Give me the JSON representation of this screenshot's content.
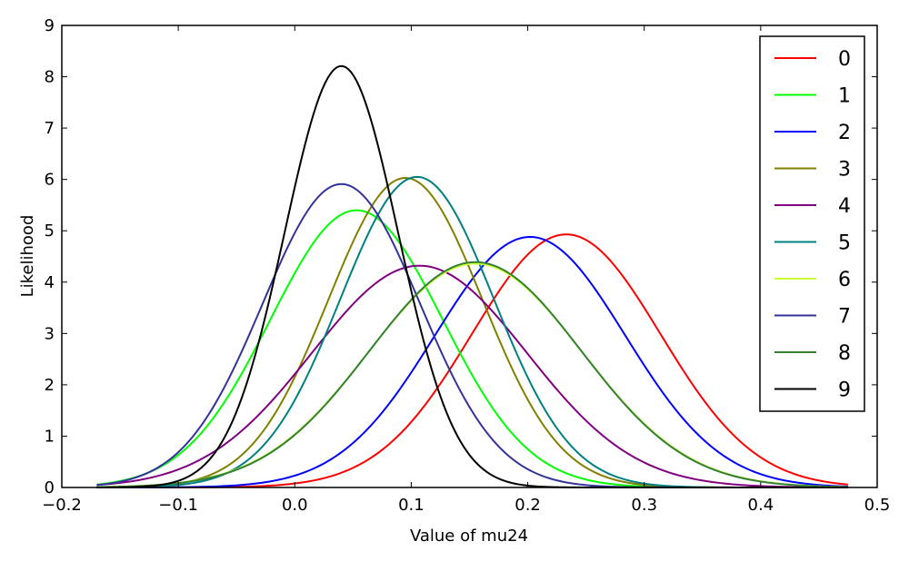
{
  "chart_data": {
    "type": "line",
    "title": "",
    "xlabel": "Value of mu24",
    "ylabel": "Likelihood",
    "xlim": [
      -0.2,
      0.5
    ],
    "ylim": [
      0,
      9
    ],
    "x_range_of_curves": [
      -0.17,
      0.475
    ],
    "xticks": [
      -0.2,
      -0.1,
      0.0,
      0.1,
      0.2,
      0.3,
      0.4,
      0.5
    ],
    "xtick_labels": [
      "−0.2",
      "−0.1",
      "0.0",
      "0.1",
      "0.2",
      "0.3",
      "0.4",
      "0.5"
    ],
    "yticks": [
      0,
      1,
      2,
      3,
      4,
      5,
      6,
      7,
      8,
      9
    ],
    "ytick_labels": [
      "0",
      "1",
      "2",
      "3",
      "4",
      "5",
      "6",
      "7",
      "8",
      "9"
    ],
    "grid": false,
    "legend_position": "top-right",
    "series": [
      {
        "name": "0",
        "color": "#ff0000",
        "peak_x": 0.233,
        "peak_y": 4.93
      },
      {
        "name": "1",
        "color": "#00ff00",
        "peak_x": 0.053,
        "peak_y": 5.4
      },
      {
        "name": "2",
        "color": "#0000ff",
        "peak_x": 0.202,
        "peak_y": 4.88
      },
      {
        "name": "3",
        "color": "#808000",
        "peak_x": 0.095,
        "peak_y": 6.03
      },
      {
        "name": "4",
        "color": "#800080",
        "peak_x": 0.107,
        "peak_y": 4.32
      },
      {
        "name": "5",
        "color": "#008080",
        "peak_x": 0.105,
        "peak_y": 6.05
      },
      {
        "name": "6",
        "color": "#ccff33",
        "peak_x": 0.155,
        "peak_y": 4.36
      },
      {
        "name": "7",
        "color": "#333399",
        "peak_x": 0.04,
        "peak_y": 5.91
      },
      {
        "name": "8",
        "color": "#338033",
        "peak_x": 0.155,
        "peak_y": 4.39
      },
      {
        "name": "9",
        "color": "#000000",
        "peak_x": 0.04,
        "peak_y": 8.21
      }
    ]
  }
}
